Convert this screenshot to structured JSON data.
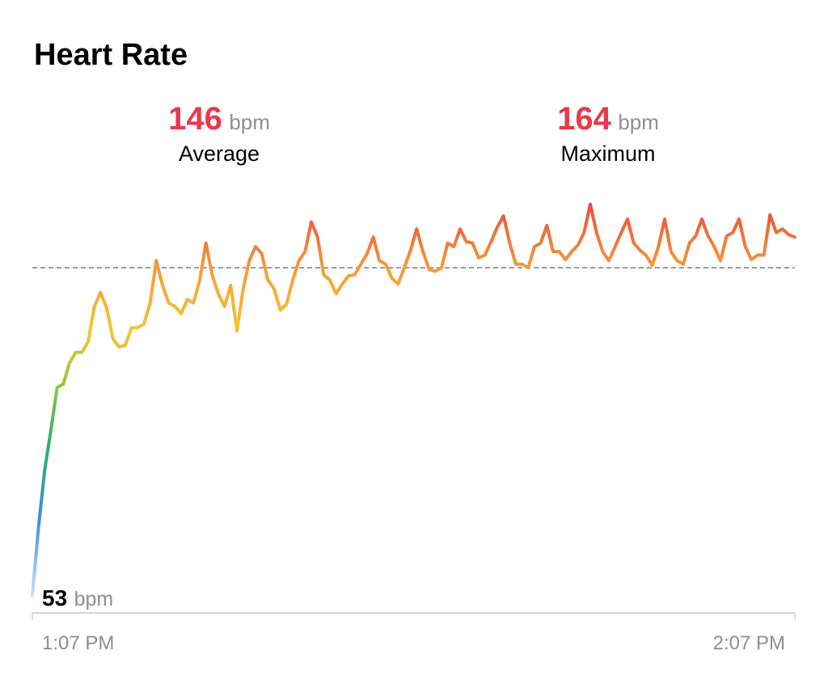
{
  "chart_data": {
    "type": "line",
    "title": "Heart Rate",
    "stats": [
      {
        "value": 146,
        "unit": "bpm",
        "label": "Average"
      },
      {
        "value": 164,
        "unit": "bpm",
        "label": "Maximum"
      }
    ],
    "min": {
      "value": 53,
      "unit": "bpm"
    },
    "x_labels": [
      "1:07 PM",
      "2:07 PM"
    ],
    "ylim": [
      48,
      166
    ],
    "gradient": [
      {
        "value": 53,
        "color": "#c9def7"
      },
      {
        "value": 75,
        "color": "#3a8ee6"
      },
      {
        "value": 95,
        "color": "#2cae6a"
      },
      {
        "value": 112,
        "color": "#8cc63f"
      },
      {
        "value": 128,
        "color": "#f7c531"
      },
      {
        "value": 146,
        "color": "#f59b3a"
      },
      {
        "value": 164,
        "color": "#ec4a3c"
      }
    ],
    "average_line": {
      "color": "#9a9a9a",
      "dashed": true
    },
    "values": [
      53,
      72.5,
      88.6,
      100,
      112,
      113,
      119,
      122,
      122,
      125,
      135,
      139,
      134.5,
      125.8,
      123.5,
      124,
      129,
      129,
      130,
      136,
      148,
      141,
      136,
      135,
      133,
      137,
      136,
      142.5,
      153,
      144,
      138.6,
      135,
      141,
      128,
      140,
      148,
      152,
      150,
      142.5,
      140,
      134,
      135.6,
      142.5,
      148,
      150.6,
      159,
      154.7,
      144,
      142.5,
      138.6,
      141.4,
      143.7,
      144,
      147,
      150,
      154.7,
      148,
      147,
      143,
      141.4,
      146,
      151,
      157,
      150.6,
      145.5,
      145,
      146,
      153,
      152,
      157,
      153.4,
      153,
      148.8,
      149.6,
      153.4,
      157.5,
      160.7,
      153,
      147,
      147,
      146,
      152,
      153,
      158,
      150.6,
      150.6,
      148.3,
      150.6,
      152.4,
      156,
      164,
      156,
      150.6,
      148,
      152,
      156,
      159.8,
      153,
      151,
      149.5,
      146.7,
      152,
      159.8,
      150.6,
      148,
      147,
      153,
      155,
      159.8,
      155,
      152,
      148,
      155,
      156,
      159.8,
      152,
      148.3,
      149.6,
      149.6,
      161,
      156,
      157,
      155.4,
      154.7
    ]
  }
}
